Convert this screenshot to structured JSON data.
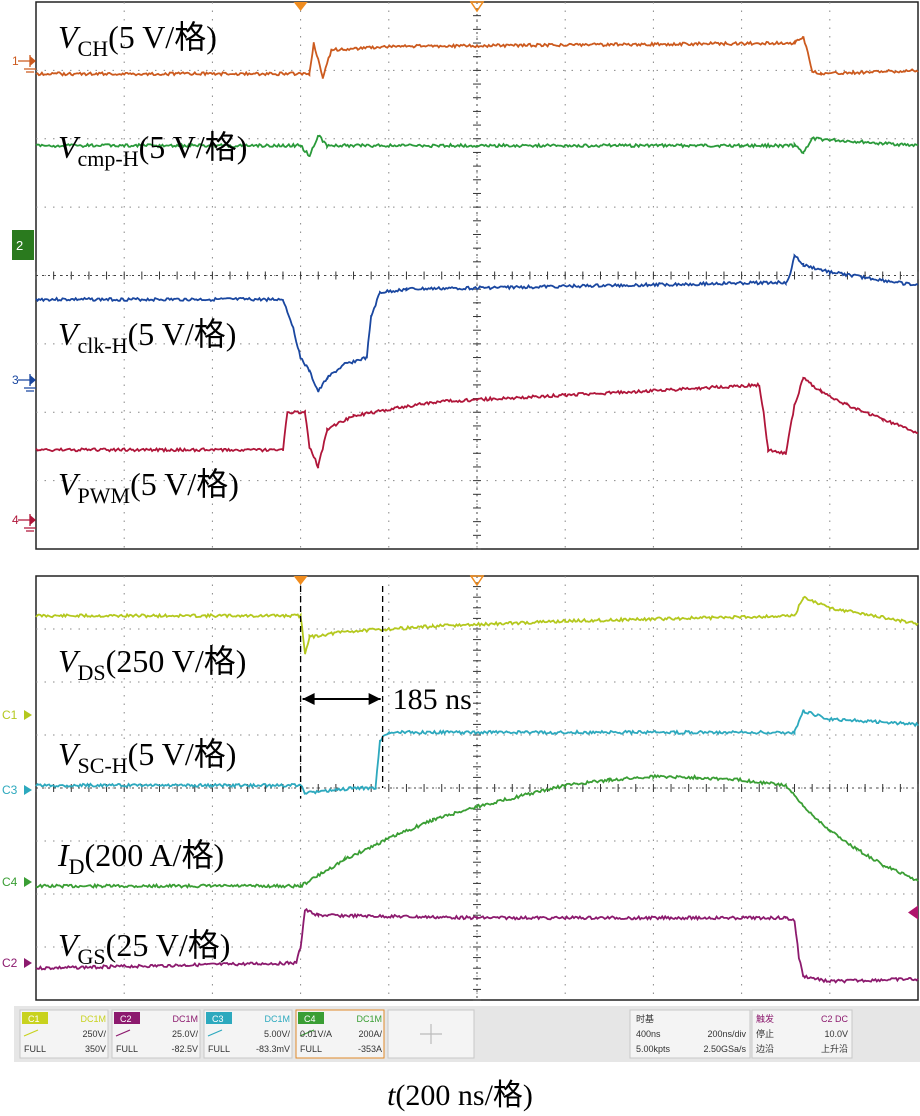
{
  "chart_data": [
    {
      "type": "line",
      "panel": "top",
      "title": "",
      "xlabel": "",
      "ylabel": "",
      "x_divisions": 10,
      "y_divisions": 8,
      "grid": true,
      "series": [
        {
          "name_main": "V",
          "name_sub": "CH",
          "scale": "(5 V/格)",
          "channel_marker": "1",
          "color": "#cc5a1e",
          "points": [
            [
              0,
              -2.95
            ],
            [
              3.1,
              -2.95
            ],
            [
              3.15,
              -3.4
            ],
            [
              3.25,
              -2.9
            ],
            [
              3.35,
              -3.3
            ],
            [
              4,
              -3.35
            ],
            [
              8.6,
              -3.4
            ],
            [
              8.7,
              -3.5
            ],
            [
              8.8,
              -3.0
            ],
            [
              8.9,
              -2.95
            ],
            [
              10,
              -3.0
            ]
          ]
        },
        {
          "name_main": "V",
          "name_cmp_sub": "cmp-H",
          "scale": "(5 V/格)",
          "channel_marker": "",
          "color": "#2a9a3a",
          "points": [
            [
              0,
              -1.9
            ],
            [
              3.0,
              -1.9
            ],
            [
              3.1,
              -1.75
            ],
            [
              3.2,
              -2.05
            ],
            [
              3.3,
              -1.9
            ],
            [
              8.6,
              -1.9
            ],
            [
              8.7,
              -1.8
            ],
            [
              8.8,
              -2.0
            ],
            [
              10,
              -1.9
            ]
          ]
        },
        {
          "name_main": "V",
          "name_sub": "clk-H",
          "scale": "(5 V/格)",
          "channel_marker": "3",
          "color": "#1a47a0",
          "points": [
            [
              0,
              0.35
            ],
            [
              2.8,
              0.35
            ],
            [
              2.9,
              0.7
            ],
            [
              3.0,
              1.2
            ],
            [
              3.1,
              1.4
            ],
            [
              3.2,
              1.7
            ],
            [
              3.3,
              1.5
            ],
            [
              3.5,
              1.3
            ],
            [
              3.75,
              1.2
            ],
            [
              3.8,
              0.6
            ],
            [
              3.9,
              0.25
            ],
            [
              4.2,
              0.2
            ],
            [
              8.5,
              0.1
            ],
            [
              8.55,
              0.0
            ],
            [
              8.6,
              -0.3
            ],
            [
              8.7,
              -0.15
            ],
            [
              9.0,
              -0.05
            ],
            [
              10,
              0.15
            ]
          ]
        },
        {
          "name_main": "V",
          "name_sub": "PWM",
          "scale": "(5 V/格)",
          "channel_marker": "4",
          "color": "#b0163a",
          "points": [
            [
              0,
              2.55
            ],
            [
              2.8,
              2.55
            ],
            [
              2.85,
              2.0
            ],
            [
              3.05,
              2.0
            ],
            [
              3.1,
              2.5
            ],
            [
              3.2,
              2.8
            ],
            [
              3.3,
              2.25
            ],
            [
              3.6,
              2.05
            ],
            [
              4.5,
              1.85
            ],
            [
              6,
              1.75
            ],
            [
              7.5,
              1.65
            ],
            [
              8.2,
              1.6
            ],
            [
              8.25,
              2.0
            ],
            [
              8.3,
              2.55
            ],
            [
              8.5,
              2.6
            ],
            [
              8.6,
              1.9
            ],
            [
              8.7,
              1.5
            ],
            [
              8.9,
              1.7
            ],
            [
              9.2,
              1.9
            ],
            [
              9.6,
              2.1
            ],
            [
              10,
              2.3
            ]
          ]
        }
      ]
    },
    {
      "type": "line",
      "panel": "bottom",
      "title": "",
      "xlabel": "t(200 ns/格)",
      "ylabel": "",
      "x_divisions": 10,
      "y_divisions": 8,
      "grid": true,
      "annotation": {
        "label": "185 ns",
        "x_start": 3.0,
        "x_end": 3.93
      },
      "series": [
        {
          "name_main": "V",
          "name_sub": "DS",
          "scale": "(250 V/格)",
          "channel_marker": "C1",
          "color": "#b4c81e",
          "points": [
            [
              0,
              -3.25
            ],
            [
              3.0,
              -3.25
            ],
            [
              3.05,
              -2.55
            ],
            [
              3.1,
              -2.85
            ],
            [
              3.5,
              -2.95
            ],
            [
              4.5,
              -3.05
            ],
            [
              6,
              -3.15
            ],
            [
              8.6,
              -3.25
            ],
            [
              8.7,
              -3.6
            ],
            [
              9.0,
              -3.4
            ],
            [
              10,
              -3.1
            ]
          ]
        },
        {
          "name_main": "V",
          "name_sub": "SC-H",
          "scale": "(5 V/格)",
          "channel_marker": "C3",
          "color": "#2da9be",
          "points": [
            [
              0,
              -0.05
            ],
            [
              3.0,
              -0.05
            ],
            [
              3.05,
              0.1
            ],
            [
              3.6,
              0.0
            ],
            [
              3.85,
              0.0
            ],
            [
              3.9,
              -0.9
            ],
            [
              4.0,
              -1.05
            ],
            [
              8.6,
              -1.05
            ],
            [
              8.7,
              -1.45
            ],
            [
              9.0,
              -1.3
            ],
            [
              10,
              -1.2
            ]
          ]
        },
        {
          "name_main": "I",
          "name_sub": "D",
          "scale": "(200 A/格)",
          "channel_marker": "C4",
          "color": "#3a9e34",
          "points": [
            [
              0,
              1.85
            ],
            [
              3.0,
              1.85
            ],
            [
              3.5,
              1.35
            ],
            [
              4.0,
              0.95
            ],
            [
              4.5,
              0.6
            ],
            [
              5.0,
              0.35
            ],
            [
              5.5,
              0.15
            ],
            [
              6.0,
              -0.05
            ],
            [
              6.5,
              -0.15
            ],
            [
              7.0,
              -0.22
            ],
            [
              7.5,
              -0.2
            ],
            [
              8.0,
              -0.15
            ],
            [
              8.5,
              -0.05
            ],
            [
              8.7,
              0.35
            ],
            [
              9.0,
              0.8
            ],
            [
              9.3,
              1.15
            ],
            [
              9.6,
              1.45
            ],
            [
              10,
              1.75
            ]
          ]
        },
        {
          "name_main": "V",
          "name_sub": "GS",
          "scale": "(25 V/格)",
          "channel_marker": "C2",
          "color": "#8c1a6e",
          "points": [
            [
              0,
              3.4
            ],
            [
              2.95,
              3.3
            ],
            [
              3.0,
              3.0
            ],
            [
              3.05,
              2.3
            ],
            [
              3.2,
              2.4
            ],
            [
              5,
              2.45
            ],
            [
              8.5,
              2.45
            ],
            [
              8.6,
              2.5
            ],
            [
              8.65,
              3.2
            ],
            [
              8.7,
              3.55
            ],
            [
              9.0,
              3.65
            ],
            [
              10,
              3.6
            ]
          ]
        }
      ]
    }
  ],
  "status_bar": {
    "channels": [
      {
        "id": "C1",
        "coupling": "DC1M",
        "scale": "250V/",
        "mode": "FULL",
        "offset": "350V",
        "color": "#c8d21e"
      },
      {
        "id": "C2",
        "coupling": "DC1M",
        "scale": "25.0V/",
        "mode": "FULL",
        "offset": "-82.5V",
        "color": "#8c1a6e"
      },
      {
        "id": "C3",
        "coupling": "DC1M",
        "scale": "5.00V/",
        "mode": "FULL",
        "offset": "-83.3mV",
        "color": "#2da9be"
      },
      {
        "id": "C4",
        "coupling": "DC1M",
        "scale": "0.01V/A",
        "scale2": "200A/",
        "mode": "FULL",
        "offset": "-353A",
        "color": "#3a9e34"
      }
    ],
    "timebase": {
      "title": "时基",
      "delay": "400ns",
      "rate": "200ns/div",
      "points": "5.00kpts",
      "sample": "2.50GSa/s"
    },
    "trigger": {
      "title": "触发",
      "source": "C2 DC",
      "mode": "停止",
      "level": "10.0V",
      "edge_label": "边沿",
      "edge": "上升沿"
    }
  },
  "caption": {
    "var": "t",
    "rest": "(200 ns/格)"
  }
}
